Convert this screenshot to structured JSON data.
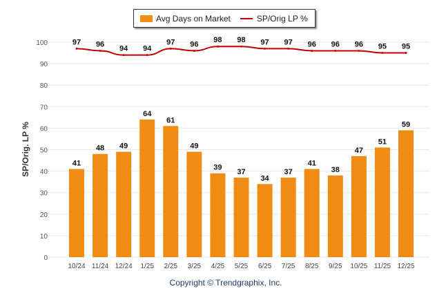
{
  "chart_data": {
    "type": "bar",
    "categories": [
      "10/24",
      "11/24",
      "12/24",
      "1/25",
      "2/25",
      "3/25",
      "4/25",
      "5/25",
      "6/25",
      "7/25",
      "8/25",
      "9/25",
      "10/25",
      "11/25",
      "12/25"
    ],
    "series": [
      {
        "name": "Avg Days on Market",
        "type": "bar",
        "color": "#f08c14",
        "values": [
          41,
          48,
          49,
          64,
          61,
          49,
          39,
          37,
          34,
          37,
          41,
          38,
          47,
          51,
          59
        ]
      },
      {
        "name": "SP/Orig LP %",
        "type": "line",
        "color": "#c00000",
        "values": [
          97,
          96,
          94,
          94,
          97,
          96,
          98,
          98,
          97,
          97,
          96,
          96,
          96,
          95,
          95
        ]
      }
    ],
    "ylabel": "SP/Orig. LP %",
    "ylim": [
      0,
      100
    ],
    "yticks": [
      0,
      10,
      20,
      30,
      40,
      50,
      60,
      70,
      80,
      90,
      100
    ],
    "grid": true,
    "legend": "top-center"
  },
  "footer": {
    "copyright": "Copyright © Trendgraphix, Inc."
  }
}
